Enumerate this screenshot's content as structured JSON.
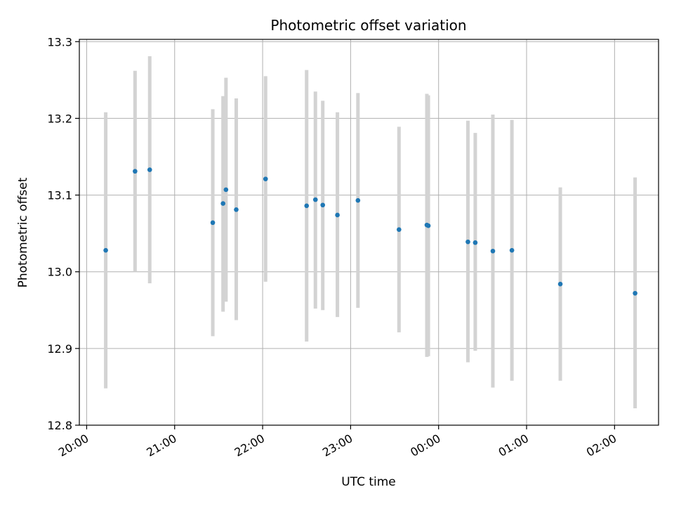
{
  "chart_data": {
    "type": "scatter",
    "title": "Photometric offset variation",
    "xlabel": "UTC time",
    "ylabel": "Photometric offset",
    "x_ticks": [
      "20:00",
      "21:00",
      "22:00",
      "23:00",
      "00:00",
      "01:00",
      "02:00"
    ],
    "y_ticks": [
      "12.8",
      "12.9",
      "13.0",
      "13.1",
      "13.2",
      "13.3"
    ],
    "xlim": [
      "19:55",
      "02:30"
    ],
    "ylim": [
      12.8,
      13.303
    ],
    "grid": true,
    "colors": {
      "point": "#1f77b4",
      "errorbar": "#d3d3d3",
      "grid": "#b0b0b0"
    },
    "points": [
      {
        "x": "20:13",
        "y": 13.028,
        "ylow": 12.848,
        "yhigh": 13.208
      },
      {
        "x": "20:33",
        "y": 13.131,
        "ylow": 13.0,
        "yhigh": 13.262
      },
      {
        "x": "20:43",
        "y": 13.133,
        "ylow": 12.985,
        "yhigh": 13.281
      },
      {
        "x": "21:26",
        "y": 13.064,
        "ylow": 12.916,
        "yhigh": 13.212
      },
      {
        "x": "21:33",
        "y": 13.089,
        "ylow": 12.948,
        "yhigh": 13.229
      },
      {
        "x": "21:35",
        "y": 13.107,
        "ylow": 12.961,
        "yhigh": 13.253
      },
      {
        "x": "21:42",
        "y": 13.081,
        "ylow": 12.937,
        "yhigh": 13.226
      },
      {
        "x": "22:02",
        "y": 13.121,
        "ylow": 12.987,
        "yhigh": 13.255
      },
      {
        "x": "22:30",
        "y": 13.086,
        "ylow": 12.909,
        "yhigh": 13.263
      },
      {
        "x": "22:36",
        "y": 13.094,
        "ylow": 12.952,
        "yhigh": 13.235
      },
      {
        "x": "22:41",
        "y": 13.087,
        "ylow": 12.95,
        "yhigh": 13.223
      },
      {
        "x": "22:51",
        "y": 13.074,
        "ylow": 12.941,
        "yhigh": 13.208
      },
      {
        "x": "23:05",
        "y": 13.093,
        "ylow": 12.953,
        "yhigh": 13.233
      },
      {
        "x": "23:33",
        "y": 13.055,
        "ylow": 12.921,
        "yhigh": 13.189
      },
      {
        "x": "23:52",
        "y": 13.061,
        "ylow": 12.889,
        "yhigh": 13.232
      },
      {
        "x": "23:53",
        "y": 13.06,
        "ylow": 12.89,
        "yhigh": 13.23
      },
      {
        "x": "00:20",
        "y": 13.039,
        "ylow": 12.882,
        "yhigh": 13.197
      },
      {
        "x": "00:25",
        "y": 13.038,
        "ylow": 12.897,
        "yhigh": 13.181
      },
      {
        "x": "00:37",
        "y": 13.027,
        "ylow": 12.849,
        "yhigh": 13.205
      },
      {
        "x": "00:50",
        "y": 13.028,
        "ylow": 12.858,
        "yhigh": 13.198
      },
      {
        "x": "01:23",
        "y": 12.984,
        "ylow": 12.858,
        "yhigh": 13.11
      },
      {
        "x": "02:14",
        "y": 12.972,
        "ylow": 12.822,
        "yhigh": 13.123
      }
    ]
  }
}
